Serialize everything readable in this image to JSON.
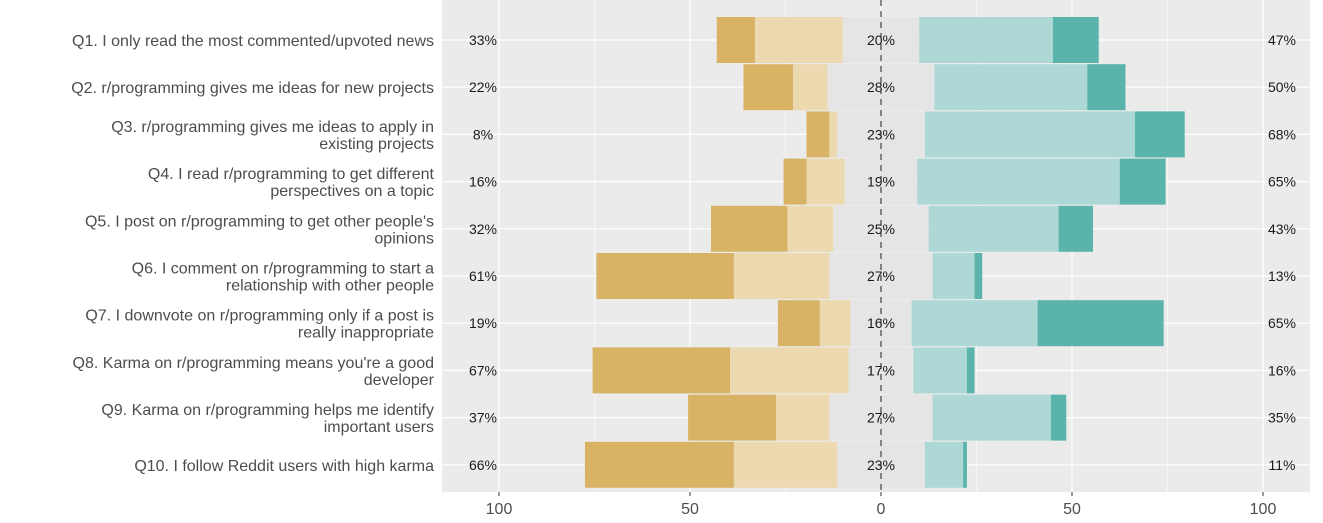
{
  "chart_data": {
    "type": "bar",
    "subtype": "diverging-stacked-likert",
    "title": "",
    "xlabel": "",
    "ylabel": "",
    "xlim": [
      -100,
      100
    ],
    "x_ticks": [
      -100,
      -50,
      0,
      50,
      100
    ],
    "x_tick_labels": [
      "100",
      "50",
      "0",
      "50",
      "100"
    ],
    "grid": true,
    "legend": "none",
    "colors": {
      "strong_negative": "#d8b365",
      "negative": "#ecd9b0",
      "neutral": "#e5e5e5",
      "positive": "#add8d5",
      "strong_positive": "#5ab4ac",
      "panel_background": "#ebebeb",
      "grid": "#ffffff",
      "center_line": "#333333",
      "label_text": "#4d4d4d",
      "pct_text": "#1a1a1a"
    },
    "questions": [
      {
        "label_lines": [
          "Q1. I only read the most commented/upvoted news"
        ],
        "strong_negative": 10,
        "negative": 23,
        "neutral": 20,
        "positive": 35,
        "strong_positive": 12,
        "left_pct": "33%",
        "neutral_pct": "20%",
        "right_pct": "47%"
      },
      {
        "label_lines": [
          "Q2. r/programming gives me ideas for new projects"
        ],
        "strong_negative": 13,
        "negative": 9,
        "neutral": 28,
        "positive": 40,
        "strong_positive": 10,
        "left_pct": "22%",
        "neutral_pct": "28%",
        "right_pct": "50%"
      },
      {
        "label_lines": [
          "Q3. r/programming gives me ideas to apply in",
          "existing projects"
        ],
        "strong_negative": 6,
        "negative": 2,
        "neutral": 23,
        "positive": 55,
        "strong_positive": 13,
        "left_pct": "8%",
        "neutral_pct": "23%",
        "right_pct": "68%"
      },
      {
        "label_lines": [
          "Q4. I read r/programming to get different",
          "perspectives on a topic"
        ],
        "strong_negative": 6,
        "negative": 10,
        "neutral": 19,
        "positive": 53,
        "strong_positive": 12,
        "left_pct": "16%",
        "neutral_pct": "19%",
        "right_pct": "65%"
      },
      {
        "label_lines": [
          "Q5. I post on r/programming to get other people's",
          "opinions"
        ],
        "strong_negative": 20,
        "negative": 12,
        "neutral": 25,
        "positive": 34,
        "strong_positive": 9,
        "left_pct": "32%",
        "neutral_pct": "25%",
        "right_pct": "43%"
      },
      {
        "label_lines": [
          "Q6. I comment on r/programming to start a",
          "relationship with other people"
        ],
        "strong_negative": 36,
        "negative": 25,
        "neutral": 27,
        "positive": 11,
        "strong_positive": 2,
        "left_pct": "61%",
        "neutral_pct": "27%",
        "right_pct": "13%"
      },
      {
        "label_lines": [
          "Q7. I downvote on r/programming only if a post is",
          "really inappropriate"
        ],
        "strong_negative": 11,
        "negative": 8,
        "neutral": 16,
        "positive": 33,
        "strong_positive": 33,
        "left_pct": "19%",
        "neutral_pct": "16%",
        "right_pct": "65%"
      },
      {
        "label_lines": [
          "Q8. Karma on r/programming means you're a good",
          "developer"
        ],
        "strong_negative": 36,
        "negative": 31,
        "neutral": 17,
        "positive": 14,
        "strong_positive": 2,
        "left_pct": "67%",
        "neutral_pct": "17%",
        "right_pct": "16%"
      },
      {
        "label_lines": [
          "Q9. Karma on r/programming helps me identify",
          "important users"
        ],
        "strong_negative": 23,
        "negative": 14,
        "neutral": 27,
        "positive": 31,
        "strong_positive": 4,
        "left_pct": "37%",
        "neutral_pct": "27%",
        "right_pct": "35%"
      },
      {
        "label_lines": [
          "Q10.  I follow Reddit users with high karma"
        ],
        "strong_negative": 39,
        "negative": 27,
        "neutral": 23,
        "positive": 10,
        "strong_positive": 1,
        "left_pct": "66%",
        "neutral_pct": "23%",
        "right_pct": "11%"
      }
    ]
  }
}
